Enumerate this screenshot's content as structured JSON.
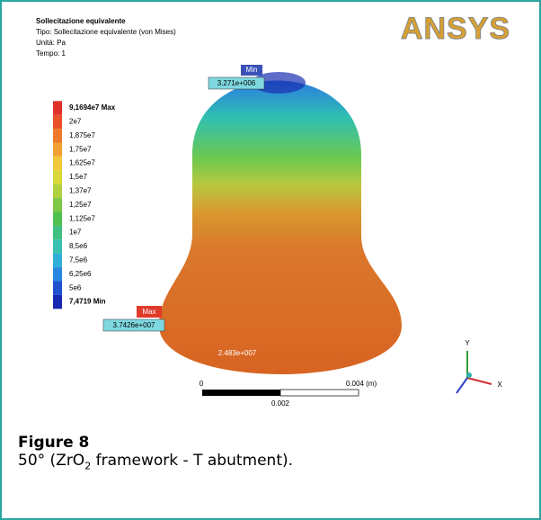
{
  "figure": {
    "header": {
      "title": "Sollecitazione equivalente",
      "type": "Tipo: Sollecitazione equivalente (von Mises)",
      "unit": "Unità: Pa",
      "time": "Tempo: 1"
    },
    "logo": "ANSYS",
    "legend": [
      {
        "label": "9,1694e7 Max",
        "color": "#e0302a"
      },
      {
        "label": "2e7",
        "color": "#e8502a"
      },
      {
        "label": "1,875e7",
        "color": "#ee7a2a"
      },
      {
        "label": "1,75e7",
        "color": "#f2a032"
      },
      {
        "label": "1,625e7",
        "color": "#f0c83a"
      },
      {
        "label": "1,5e7",
        "color": "#d8d83a"
      },
      {
        "label": "1,37e7",
        "color": "#b0d040"
      },
      {
        "label": "1,25e7",
        "color": "#80c848"
      },
      {
        "label": "1,125e7",
        "color": "#50c050"
      },
      {
        "label": "1e7",
        "color": "#40c080"
      },
      {
        "label": "8,5e6",
        "color": "#38c0b0"
      },
      {
        "label": "7,5e6",
        "color": "#30b0d8"
      },
      {
        "label": "6,25e6",
        "color": "#2888e0"
      },
      {
        "label": "5e6",
        "color": "#2050d0"
      },
      {
        "label": "7,4719 Min",
        "color": "#1828b0"
      }
    ],
    "annotations": {
      "min_tag": "Min",
      "min_value": "3.271e+006",
      "max_tag": "Max",
      "max_value": "3.7426e+007",
      "mid_value": "2.483e+007"
    },
    "scale": {
      "start": "0",
      "end": "0.004 (m)",
      "mid": "0.002"
    },
    "axes": {
      "y": "Y",
      "x": "X"
    },
    "caption": {
      "label": "Figure 8",
      "text_before": "50° (ZrO",
      "subscript": "2",
      "text_after": " framework - T abutment)."
    }
  }
}
